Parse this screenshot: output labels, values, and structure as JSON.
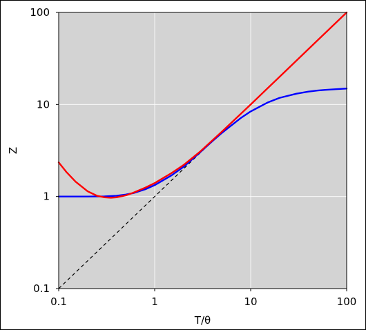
{
  "chart_data": {
    "type": "line",
    "title": "",
    "xlabel": "T/θ",
    "ylabel": "Z",
    "x_scale": "log",
    "y_scale": "log",
    "xlim": [
      0.1,
      100
    ],
    "ylim": [
      0.1,
      100
    ],
    "x_ticks": [
      "0.1",
      "1",
      "10",
      "100"
    ],
    "y_ticks": [
      "0.1",
      "1",
      "10",
      "100"
    ],
    "grid": true,
    "plot_background": "#d3d3d3",
    "grid_color": "#ffffff",
    "legend": "none",
    "series": [
      {
        "color": "#0000ff",
        "style": "solid",
        "x": [
          0.1,
          0.2,
          0.3,
          0.4,
          0.5,
          0.6,
          0.8,
          1,
          1.5,
          2,
          3,
          4,
          5,
          6,
          8,
          10,
          15,
          20,
          30,
          40,
          50,
          60,
          80,
          100
        ],
        "y": [
          1.0,
          1.0,
          1.004,
          1.02,
          1.05,
          1.09,
          1.2,
          1.33,
          1.7,
          2.1,
          3.05,
          4.0,
          4.9,
          5.7,
          7.2,
          8.4,
          10.5,
          11.8,
          13.1,
          13.8,
          14.2,
          14.4,
          14.7,
          14.9
        ]
      },
      {
        "color": "#ff0000",
        "style": "solid",
        "x": [
          0.1,
          0.12,
          0.15,
          0.2,
          0.25,
          0.3,
          0.35,
          0.4,
          0.5,
          0.6,
          0.8,
          1,
          1.5,
          2,
          3,
          5,
          10,
          20,
          50,
          100
        ],
        "y": [
          2.35,
          1.85,
          1.45,
          1.14,
          1.02,
          0.98,
          0.97,
          0.98,
          1.03,
          1.1,
          1.25,
          1.4,
          1.8,
          2.2,
          3.1,
          5.05,
          10.0,
          20.0,
          50.0,
          100.0
        ]
      },
      {
        "color": "#000000",
        "style": "dashed",
        "x": [
          0.1,
          100
        ],
        "y": [
          0.1,
          100
        ]
      }
    ]
  }
}
